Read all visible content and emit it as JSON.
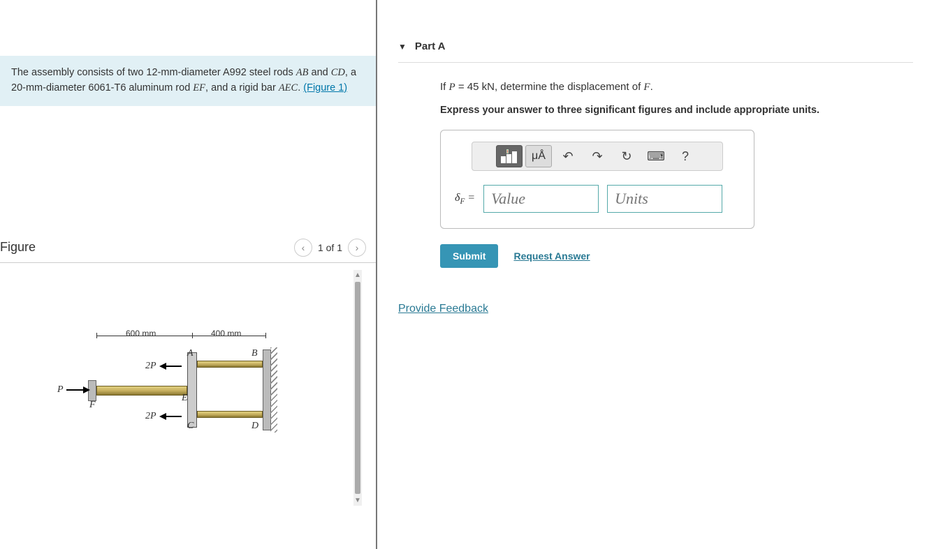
{
  "problem": {
    "text_html": "The assembly consists of two 12-mm-diameter A992 steel rods <span class='it'>AB</span> and <span class='it'>CD</span>, a 20-mm-diameter 6061-T6 aluminum rod <span class='it'>EF</span>, and a rigid bar <span class='it'>AEC</span>.",
    "figure_link": "(Figure 1)"
  },
  "figure": {
    "header": "Figure",
    "pager_text": "1 of 1",
    "dim_left": "600 mm",
    "dim_right": "400 mm",
    "labels": {
      "A": "A",
      "B": "B",
      "C": "C",
      "D": "D",
      "E": "E",
      "F": "F",
      "P": "P",
      "twoP": "2P"
    }
  },
  "part": {
    "title": "Part A",
    "question_html": "If <span class='it'>P</span> = 45 kN, determine the displacement of <span class='it'>F</span>.",
    "instruction": "Express your answer to three significant figures and include appropriate units.",
    "label_html": "<span style='font-style:italic'>δ<sub style='font-size:0.7em'>F</sub></span> =",
    "value_placeholder": "Value",
    "units_placeholder": "Units",
    "submit": "Submit",
    "request_answer": "Request Answer",
    "toolbar": {
      "units_btn": "μÅ",
      "help": "?"
    }
  },
  "feedback": "Provide Feedback",
  "colors": {
    "accent": "#3695b5",
    "link": "#2a7a94",
    "problem_bg": "#e1f0f5",
    "input_border": "#5aa"
  }
}
